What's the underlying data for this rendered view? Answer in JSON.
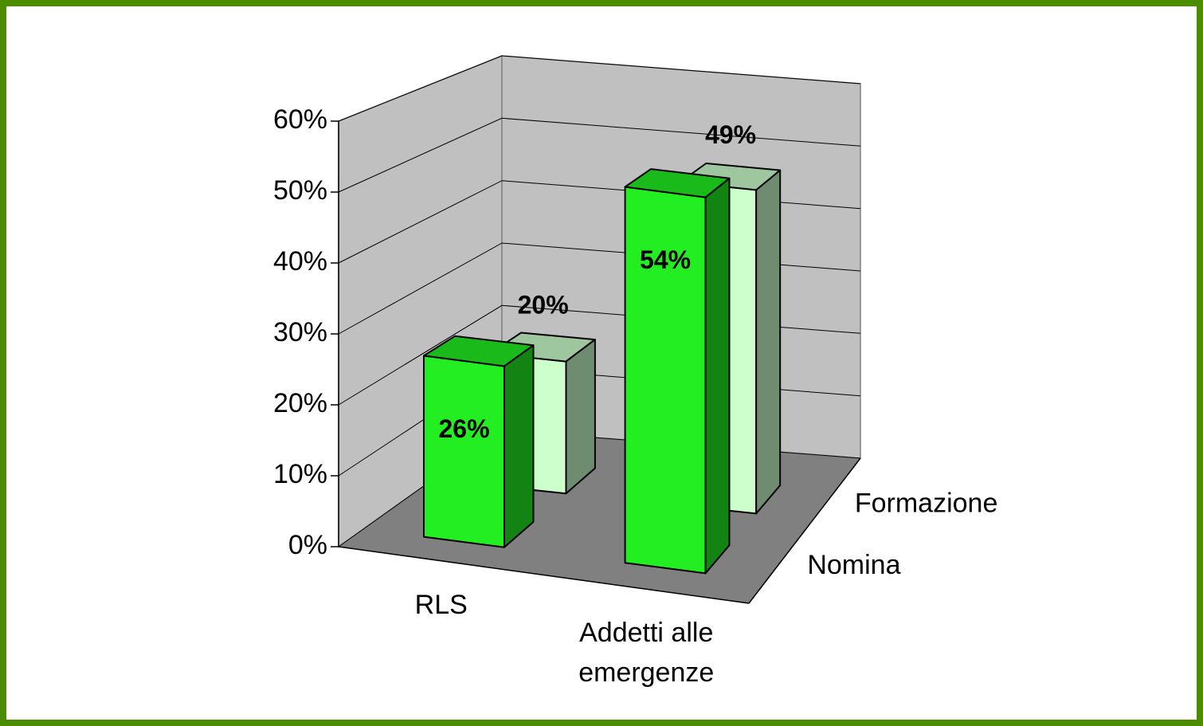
{
  "chart_data": {
    "type": "bar3d",
    "categories": [
      "RLS",
      "Addetti alle emergenze"
    ],
    "series": [
      {
        "name": "Nomina",
        "color": "#22ee22",
        "values": [
          26,
          54
        ],
        "value_labels": [
          "26%",
          "54%"
        ]
      },
      {
        "name": "Formazione",
        "color": "#ccffcc",
        "values": [
          20,
          49
        ],
        "value_labels": [
          "20%",
          "49%"
        ]
      }
    ],
    "ylim": [
      0,
      60
    ],
    "yticks": [
      {
        "value": 0,
        "label": "0%"
      },
      {
        "value": 10,
        "label": "10%"
      },
      {
        "value": 20,
        "label": "20%"
      },
      {
        "value": 30,
        "label": "30%"
      },
      {
        "value": 40,
        "label": "40%"
      },
      {
        "value": 50,
        "label": "50%"
      },
      {
        "value": 60,
        "label": "60%"
      }
    ],
    "grid": true
  }
}
